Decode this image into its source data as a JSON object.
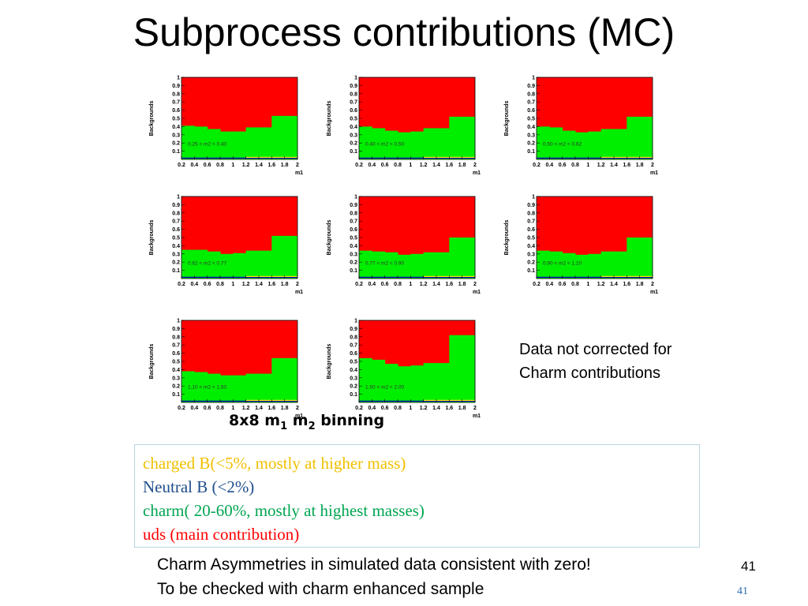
{
  "title": "Subprocess contributions (MC)",
  "binning": {
    "prefix": "8x8 m",
    "sub1": "1",
    "mid": " m",
    "sub2": "2",
    "suffix": " binning"
  },
  "note": {
    "line1": "Data not corrected for",
    "line2": "Charm contributions"
  },
  "legend": [
    {
      "text": "charged B(<5%, mostly at higher mass)",
      "color": "#f0c000"
    },
    {
      "text": "Neutral B (<2%)",
      "color": "#1f4e8c"
    },
    {
      "text": "charm(   20-60%, mostly at highest masses)",
      "color": "#00a550"
    },
    {
      "text": "uds (main contribution)",
      "color": "#ff0000"
    }
  ],
  "footer": {
    "line1": "Charm Asymmetries in simulated data consistent with zero!",
    "line2": "To be checked with charm enhanced sample"
  },
  "page_number": "41",
  "page_number_small": "41",
  "colors": {
    "uds": "#ff0000",
    "charm": "#00ee00",
    "neutral_b": "#0000cc",
    "charged_b": "#ffee00"
  },
  "chart_data": [
    {
      "type": "area",
      "title": "0.25 < m2 < 0.40",
      "xlabel": "m1",
      "ylabel": "Backgrounds",
      "xlim": [
        0.2,
        2.0
      ],
      "ylim": [
        0,
        1
      ],
      "x_ticks": [
        "0.2",
        "0.4",
        "0.6",
        "0.8",
        "1",
        "1.2",
        "1.4",
        "1.6",
        "1.8",
        "2"
      ],
      "y_ticks": [
        "0.1",
        "0.2",
        "0.3",
        "0.4",
        "0.5",
        "0.6",
        "0.7",
        "0.8",
        "0.9",
        "1"
      ],
      "bin_edges": [
        0.2,
        0.4,
        0.6,
        0.8,
        1.0,
        1.2,
        1.4,
        1.6,
        1.8,
        2.0
      ],
      "charm_top": [
        0.41,
        0.4,
        0.37,
        0.34,
        0.34,
        0.39,
        0.39,
        0.53,
        0.53
      ]
    },
    {
      "type": "area",
      "title": "0.40 < m2 < 0.50",
      "xlabel": "m1",
      "ylabel": "Backgrounds",
      "xlim": [
        0.2,
        2.0
      ],
      "ylim": [
        0,
        1
      ],
      "x_ticks": [
        "0.2",
        "0.4",
        "0.6",
        "0.8",
        "1",
        "1.2",
        "1.4",
        "1.6",
        "1.8",
        "2"
      ],
      "y_ticks": [
        "0.1",
        "0.2",
        "0.3",
        "0.4",
        "0.5",
        "0.6",
        "0.7",
        "0.8",
        "0.9",
        "1"
      ],
      "bin_edges": [
        0.2,
        0.4,
        0.6,
        0.8,
        1.0,
        1.2,
        1.4,
        1.6,
        1.8,
        2.0
      ],
      "charm_top": [
        0.4,
        0.38,
        0.35,
        0.33,
        0.34,
        0.38,
        0.38,
        0.52,
        0.52
      ]
    },
    {
      "type": "area",
      "title": "0.50 < m2 < 0.62",
      "xlabel": "m1",
      "ylabel": "Backgrounds",
      "xlim": [
        0.2,
        2.0
      ],
      "ylim": [
        0,
        1
      ],
      "x_ticks": [
        "0.2",
        "0.4",
        "0.6",
        "0.8",
        "1",
        "1.2",
        "1.4",
        "1.6",
        "1.8",
        "2"
      ],
      "y_ticks": [
        "0.1",
        "0.2",
        "0.3",
        "0.4",
        "0.5",
        "0.6",
        "0.7",
        "0.8",
        "0.9",
        "1"
      ],
      "bin_edges": [
        0.2,
        0.4,
        0.6,
        0.8,
        1.0,
        1.2,
        1.4,
        1.6,
        1.8,
        2.0
      ],
      "charm_top": [
        0.4,
        0.39,
        0.35,
        0.33,
        0.34,
        0.37,
        0.37,
        0.52,
        0.52
      ]
    },
    {
      "type": "area",
      "title": "0.62 < m2 < 0.77",
      "xlabel": "m1",
      "ylabel": "Backgrounds",
      "xlim": [
        0.2,
        2.0
      ],
      "ylim": [
        0,
        1
      ],
      "x_ticks": [
        "0.2",
        "0.4",
        "0.6",
        "0.8",
        "1",
        "1.2",
        "1.4",
        "1.6",
        "1.8",
        "2"
      ],
      "y_ticks": [
        "0.1",
        "0.2",
        "0.3",
        "0.4",
        "0.5",
        "0.6",
        "0.7",
        "0.8",
        "0.9",
        "1"
      ],
      "bin_edges": [
        0.2,
        0.4,
        0.6,
        0.8,
        1.0,
        1.2,
        1.4,
        1.6,
        1.8,
        2.0
      ],
      "charm_top": [
        0.35,
        0.35,
        0.33,
        0.3,
        0.31,
        0.34,
        0.34,
        0.52,
        0.52
      ]
    },
    {
      "type": "area",
      "title": "0.77 < m2 < 0.90",
      "xlabel": "m1",
      "ylabel": "Backgrounds",
      "xlim": [
        0.2,
        2.0
      ],
      "ylim": [
        0,
        1
      ],
      "x_ticks": [
        "0.2",
        "0.4",
        "0.6",
        "0.8",
        "1",
        "1.2",
        "1.4",
        "1.6",
        "1.8",
        "2"
      ],
      "y_ticks": [
        "0.1",
        "0.2",
        "0.3",
        "0.4",
        "0.5",
        "0.6",
        "0.7",
        "0.8",
        "0.9",
        "1"
      ],
      "bin_edges": [
        0.2,
        0.4,
        0.6,
        0.8,
        1.0,
        1.2,
        1.4,
        1.6,
        1.8,
        2.0
      ],
      "charm_top": [
        0.34,
        0.33,
        0.32,
        0.29,
        0.3,
        0.32,
        0.32,
        0.5,
        0.5
      ]
    },
    {
      "type": "area",
      "title": "0.90 < m2 < 1.10",
      "xlabel": "m1",
      "ylabel": "Backgrounds",
      "xlim": [
        0.2,
        2.0
      ],
      "ylim": [
        0,
        1
      ],
      "x_ticks": [
        "0.2",
        "0.4",
        "0.6",
        "0.8",
        "1",
        "1.2",
        "1.4",
        "1.6",
        "1.8",
        "2"
      ],
      "y_ticks": [
        "0.1",
        "0.2",
        "0.3",
        "0.4",
        "0.5",
        "0.6",
        "0.7",
        "0.8",
        "0.9",
        "1"
      ],
      "bin_edges": [
        0.2,
        0.4,
        0.6,
        0.8,
        1.0,
        1.2,
        1.4,
        1.6,
        1.8,
        2.0
      ],
      "charm_top": [
        0.34,
        0.33,
        0.31,
        0.29,
        0.3,
        0.33,
        0.33,
        0.5,
        0.5
      ]
    },
    {
      "type": "area",
      "title": "1.10 < m2 < 1.50",
      "xlabel": "m1",
      "ylabel": "Backgrounds",
      "xlim": [
        0.2,
        2.0
      ],
      "ylim": [
        0,
        1
      ],
      "x_ticks": [
        "0.2",
        "0.4",
        "0.6",
        "0.8",
        "1",
        "1.2",
        "1.4",
        "1.6",
        "1.8",
        "2"
      ],
      "y_ticks": [
        "0.1",
        "0.2",
        "0.3",
        "0.4",
        "0.5",
        "0.6",
        "0.7",
        "0.8",
        "0.9",
        "1"
      ],
      "bin_edges": [
        0.2,
        0.4,
        0.6,
        0.8,
        1.0,
        1.2,
        1.4,
        1.6,
        1.8,
        2.0
      ],
      "charm_top": [
        0.38,
        0.37,
        0.35,
        0.33,
        0.33,
        0.35,
        0.35,
        0.54,
        0.54
      ]
    },
    {
      "type": "area",
      "title": "1.50 < m2 < 2.00",
      "xlabel": "m1",
      "ylabel": "Backgrounds",
      "xlim": [
        0.2,
        2.0
      ],
      "ylim": [
        0,
        1
      ],
      "x_ticks": [
        "0.2",
        "0.4",
        "0.6",
        "0.8",
        "1",
        "1.2",
        "1.4",
        "1.6",
        "1.8",
        "2"
      ],
      "y_ticks": [
        "0.1",
        "0.2",
        "0.3",
        "0.4",
        "0.5",
        "0.6",
        "0.7",
        "0.8",
        "0.9",
        "1"
      ],
      "bin_edges": [
        0.2,
        0.4,
        0.6,
        0.8,
        1.0,
        1.2,
        1.4,
        1.6,
        1.8,
        2.0
      ],
      "charm_top": [
        0.54,
        0.52,
        0.47,
        0.44,
        0.45,
        0.48,
        0.48,
        0.82,
        0.82
      ]
    }
  ]
}
